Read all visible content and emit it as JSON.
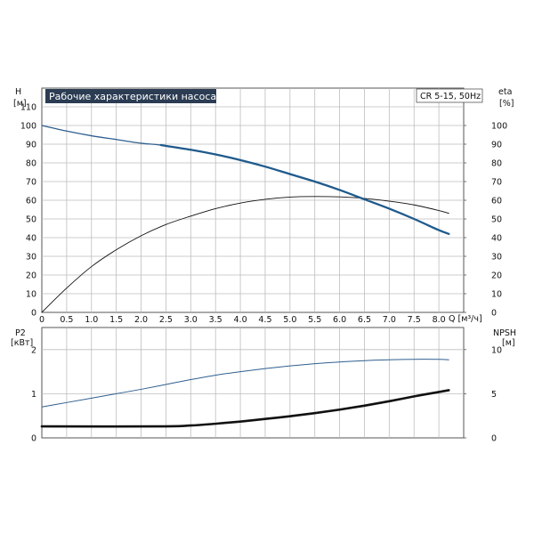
{
  "chart_data": [
    {
      "type": "line",
      "title": "Рабочие характеристики насоса",
      "badge": "CR 5-15, 50Hz",
      "ylabel_left": "H",
      "ylabel_left_unit": "[м]",
      "ylabel_right": "eta",
      "ylabel_right_unit": "[%]",
      "xlabel": "Q [м³/ч]",
      "xlim": [
        0,
        8.5
      ],
      "ylim_left": [
        0,
        120
      ],
      "ylim_right": [
        0,
        120
      ],
      "x_ticks": [
        "0",
        "0.5",
        "1.0",
        "1.5",
        "2.0",
        "2.5",
        "3.0",
        "3.5",
        "4.0",
        "4.5",
        "5.0",
        "5.5",
        "6.0",
        "6.5",
        "7.0",
        "7.5",
        "8.0"
      ],
      "y_left_ticks": [
        "0",
        "10",
        "20",
        "30",
        "40",
        "50",
        "60",
        "70",
        "80",
        "90",
        "100",
        "110"
      ],
      "y_right_ticks": [
        "0",
        "10",
        "20",
        "30",
        "40",
        "50",
        "60",
        "70",
        "80",
        "90",
        "100"
      ],
      "grid": true,
      "series": [
        {
          "name": "",
          "axis": "left",
          "color": "#2f5f8f",
          "x": [
            0,
            0.5,
            1.0,
            1.5,
            2.0,
            2.4,
            3.0,
            3.5,
            4.0,
            4.5,
            5.0,
            5.5,
            6.0,
            6.5,
            7.0,
            7.5,
            8.0,
            8.2
          ],
          "y": [
            100,
            97,
            94.5,
            92.5,
            90.5,
            89.5,
            87,
            84.5,
            81.5,
            78,
            74,
            70,
            65.5,
            60.5,
            55.5,
            50,
            44,
            42
          ]
        },
        {
          "name": "",
          "axis": "right",
          "color": "#111111",
          "x": [
            0,
            0.5,
            1.0,
            1.5,
            2.0,
            2.5,
            3.0,
            3.5,
            4.0,
            4.5,
            5.0,
            5.5,
            6.0,
            6.5,
            7.0,
            7.5,
            8.0,
            8.2
          ],
          "y": [
            0,
            13,
            24.5,
            33.5,
            41,
            47,
            51.5,
            55.5,
            58.5,
            60.5,
            61.7,
            62,
            61.8,
            61,
            59.5,
            57.5,
            54.5,
            53
          ]
        }
      ]
    },
    {
      "type": "line",
      "ylabel_left": "P2",
      "ylabel_left_unit": "[кВт]",
      "ylabel_right": "NPSH",
      "ylabel_right_unit": "[м]",
      "xlim": [
        0,
        8.5
      ],
      "ylim_left": [
        0,
        2.5
      ],
      "ylim_right": [
        0,
        12.5
      ],
      "y_left_ticks": [
        "0",
        "1",
        "2"
      ],
      "y_right_ticks": [
        "0",
        "5",
        "10"
      ],
      "grid": true,
      "series": [
        {
          "name": "",
          "axis": "left",
          "color": "#2f5f8f",
          "x": [
            0,
            0.5,
            1.0,
            1.5,
            2.0,
            2.5,
            3.0,
            3.5,
            4.0,
            4.5,
            5.0,
            5.5,
            6.0,
            6.5,
            7.0,
            7.5,
            8.0,
            8.2
          ],
          "y": [
            0.7,
            0.8,
            0.9,
            1.0,
            1.1,
            1.21,
            1.32,
            1.42,
            1.5,
            1.57,
            1.63,
            1.68,
            1.72,
            1.75,
            1.77,
            1.78,
            1.78,
            1.77
          ]
        },
        {
          "name": "",
          "axis": "right",
          "color": "#111111",
          "x": [
            0,
            2.4,
            3.0,
            3.5,
            4.0,
            4.5,
            5.0,
            5.5,
            6.0,
            6.5,
            7.0,
            7.5,
            8.0,
            8.2
          ],
          "y": [
            1.3,
            1.3,
            1.4,
            1.6,
            1.85,
            2.15,
            2.45,
            2.8,
            3.2,
            3.65,
            4.15,
            4.7,
            5.2,
            5.4
          ]
        }
      ]
    }
  ]
}
